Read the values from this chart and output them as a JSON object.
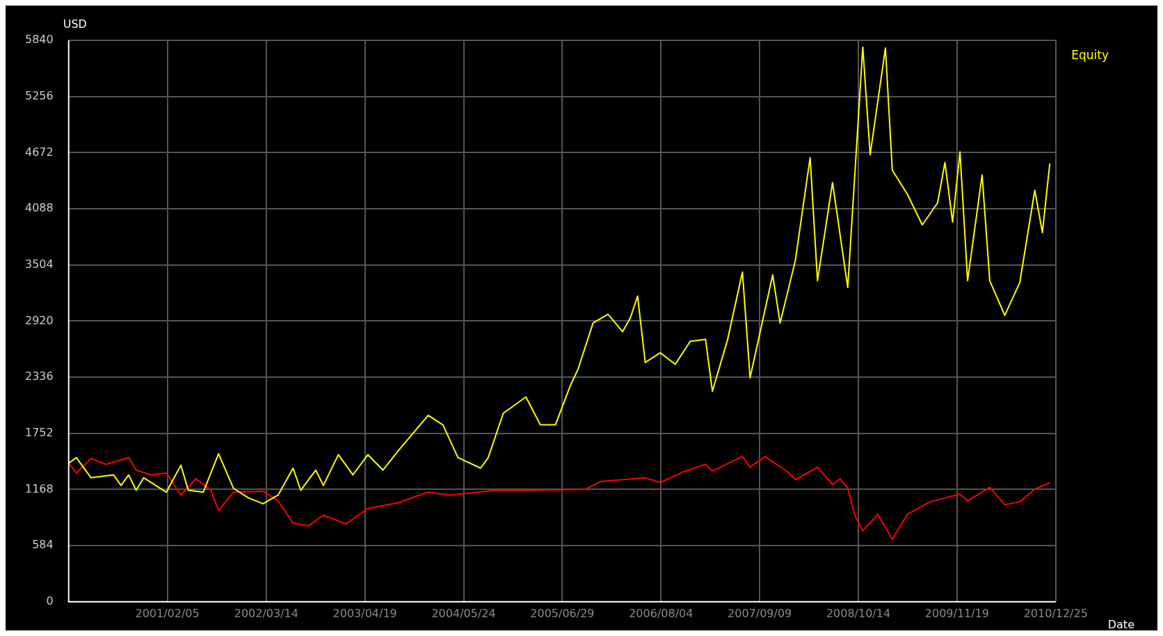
{
  "chart_data": {
    "type": "line",
    "ylabel": "USD",
    "xlabel": "Date",
    "legend": "top right",
    "grid": true,
    "marker": "none",
    "line_style": "solid",
    "xlim": [
      "2000-01-01",
      "2010-12-25"
    ],
    "xticks": [
      {
        "value": "2001-02-05",
        "label": "2001/02/05"
      },
      {
        "value": "2002-03-14",
        "label": "2002/03/14"
      },
      {
        "value": "2003-04-19",
        "label": "2003/04/19"
      },
      {
        "value": "2004-05-24",
        "label": "2004/05/24"
      },
      {
        "value": "2005-06-29",
        "label": "2005/06/29"
      },
      {
        "value": "2006-08-04",
        "label": "2006/08/04"
      },
      {
        "value": "2007-09-09",
        "label": "2007/09/09"
      },
      {
        "value": "2008-10-14",
        "label": "2008/10/14"
      },
      {
        "value": "2009-11-19",
        "label": "2009/11/19"
      },
      {
        "value": "2010-12-25",
        "label": "2010/12/25"
      }
    ],
    "ylim": [
      0,
      5840
    ],
    "yticks": [
      0,
      584,
      1168,
      1752,
      2336,
      2920,
      3504,
      4088,
      4672,
      5256,
      5840
    ],
    "series": [
      {
        "name": "Equity",
        "color": "#ffff00",
        "x": [
          "2000-01",
          "2000-02",
          "2000-04",
          "2000-07",
          "2000-08",
          "2000-09",
          "2000-10",
          "2000-11",
          "2001-02",
          "2001-04",
          "2001-05",
          "2001-07",
          "2001-09",
          "2001-11",
          "2002-01",
          "2002-03",
          "2002-05",
          "2002-07",
          "2002-08",
          "2002-10",
          "2002-11",
          "2003-01",
          "2003-03",
          "2003-05",
          "2003-07",
          "2003-09",
          "2004-01",
          "2004-03",
          "2004-05",
          "2004-08",
          "2004-09",
          "2004-11",
          "2005-02",
          "2005-04",
          "2005-06",
          "2005-08",
          "2005-09",
          "2005-11",
          "2006-01",
          "2006-03",
          "2006-04",
          "2006-05",
          "2006-06",
          "2006-08",
          "2006-10",
          "2006-12",
          "2007-02",
          "2007-03",
          "2007-05",
          "2007-07",
          "2007-08",
          "2007-11",
          "2007-12",
          "2008-02",
          "2008-04",
          "2008-05",
          "2008-07",
          "2008-09",
          "2008-11",
          "2008-12",
          "2009-02",
          "2009-03",
          "2009-05",
          "2009-07",
          "2009-09",
          "2009-10",
          "2009-11",
          "2009-12",
          "2010-01",
          "2010-03",
          "2010-04",
          "2010-06",
          "2010-08",
          "2010-10",
          "2010-11",
          "2010-12"
        ],
        "values": [
          1440,
          1500,
          1290,
          1320,
          1210,
          1320,
          1160,
          1290,
          1140,
          1420,
          1160,
          1140,
          1540,
          1180,
          1080,
          1020,
          1110,
          1390,
          1160,
          1370,
          1210,
          1530,
          1320,
          1530,
          1370,
          1570,
          1940,
          1840,
          1500,
          1390,
          1500,
          1960,
          2130,
          1840,
          1840,
          2250,
          2420,
          2900,
          2990,
          2810,
          2950,
          3180,
          2490,
          2590,
          2470,
          2710,
          2730,
          2190,
          2720,
          3430,
          2330,
          3400,
          2900,
          3550,
          4620,
          3340,
          4360,
          3270,
          5770,
          4650,
          5760,
          4490,
          4240,
          3920,
          4150,
          4570,
          3950,
          4680,
          3340,
          4440,
          3340,
          2980,
          3320,
          4280,
          3840,
          4560
        ]
      },
      {
        "color": "#ff0000",
        "x": [
          "2000-01",
          "2000-02",
          "2000-04",
          "2000-06",
          "2000-09",
          "2000-10",
          "2000-12",
          "2001-02",
          "2001-04",
          "2001-06",
          "2001-08",
          "2001-09",
          "2001-11",
          "2002-03",
          "2002-05",
          "2002-07",
          "2002-09",
          "2002-11",
          "2003-02",
          "2003-05",
          "2003-09",
          "2004-01",
          "2004-04",
          "2004-10",
          "2005-03",
          "2005-10",
          "2005-12",
          "2006-06",
          "2006-08",
          "2006-11",
          "2007-02",
          "2007-03",
          "2007-07",
          "2007-08",
          "2007-10",
          "2008-01",
          "2008-02",
          "2008-05",
          "2008-07",
          "2008-08",
          "2008-09",
          "2008-10",
          "2008-11",
          "2009-01",
          "2009-03",
          "2009-05",
          "2009-08",
          "2009-10",
          "2009-12",
          "2010-01",
          "2010-04",
          "2010-06",
          "2010-08",
          "2010-10",
          "2010-12"
        ],
        "values": [
          1440,
          1340,
          1490,
          1430,
          1500,
          1370,
          1320,
          1340,
          1110,
          1280,
          1160,
          950,
          1140,
          1150,
          1050,
          820,
          790,
          900,
          810,
          970,
          1030,
          1140,
          1110,
          1160,
          1160,
          1170,
          1250,
          1290,
          1240,
          1350,
          1430,
          1360,
          1510,
          1400,
          1510,
          1350,
          1270,
          1400,
          1220,
          1280,
          1180,
          890,
          740,
          910,
          650,
          910,
          1040,
          1080,
          1120,
          1050,
          1190,
          1010,
          1040,
          1170,
          1240
        ]
      }
    ]
  }
}
